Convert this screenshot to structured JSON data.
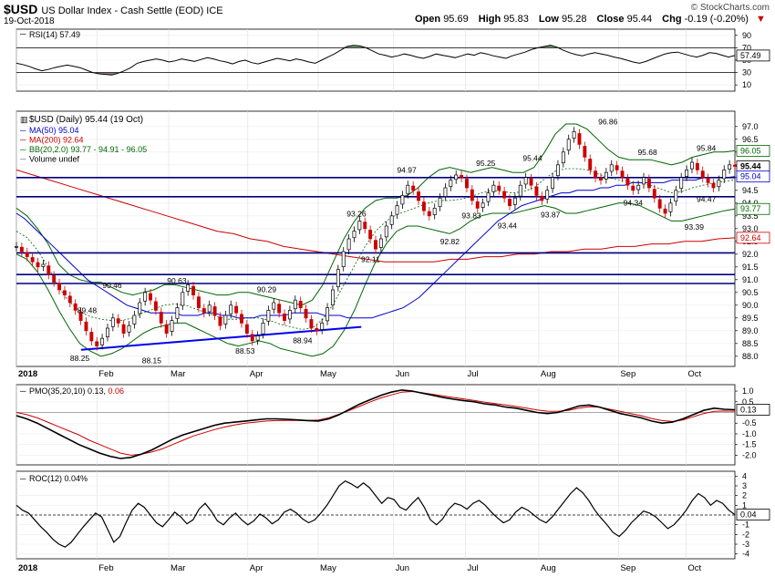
{
  "header": {
    "symbol": "$USD",
    "description": "US Dollar Index - Cash Settle (EOD) ICE",
    "date": "19-Oct-2018",
    "credit": "© StockCharts.com",
    "open_label": "Open",
    "open": "95.69",
    "high_label": "High",
    "high": "95.83",
    "low_label": "Low",
    "low": "95.28",
    "close_label": "Close",
    "close": "95.44",
    "chg_label": "Chg",
    "chg": "-0.19 (-0.20%)",
    "down_arrow": "▼"
  },
  "colors": {
    "up": "#000000",
    "down": "#cc0000",
    "ma50": "#0000cc",
    "ma200": "#cc0000",
    "bb": "#006600",
    "hline": "#000080",
    "trend": "#0000ee",
    "pmo": "#000000",
    "pmo_sig": "#cc0000",
    "rsi": "#000000",
    "rsi_fill": "#669966",
    "rsi_low": "#996666"
  },
  "chart_data": [
    {
      "type": "line",
      "panel": "rsi",
      "title": "RSI(14) 57.49",
      "last_label": "57.49",
      "ylim": [
        0,
        100
      ],
      "yticks": [
        10,
        30,
        50,
        70,
        90
      ],
      "levels": [
        30,
        70
      ],
      "values": [
        45,
        43,
        40,
        36,
        33,
        35,
        38,
        40,
        42,
        40,
        38,
        34,
        30,
        28,
        27,
        26,
        29,
        33,
        38,
        45,
        48,
        50,
        52,
        50,
        47,
        49,
        52,
        50,
        48,
        51,
        54,
        52,
        49,
        47,
        44,
        48,
        50,
        46,
        44,
        47,
        50,
        53,
        51,
        49,
        52,
        50,
        47,
        45,
        50,
        55,
        60,
        66,
        72,
        74,
        73,
        70,
        65,
        60,
        58,
        55,
        57,
        60,
        58,
        55,
        53,
        56,
        60,
        58,
        56,
        54,
        57,
        60,
        58,
        62,
        60,
        57,
        55,
        53,
        57,
        60,
        63,
        67,
        70,
        72,
        74,
        71,
        66,
        62,
        59,
        57,
        60,
        62,
        60,
        58,
        55,
        53,
        50,
        47,
        45,
        48,
        52,
        56,
        60,
        62,
        63,
        60,
        57,
        55,
        58,
        62,
        61,
        58,
        55,
        57.49
      ]
    },
    {
      "type": "candlestick",
      "panel": "price",
      "title": "$USD (Daily) 95.44 (19 Oct)",
      "legend": [
        {
          "label": "MA(50) 95.04",
          "color": "#0000cc"
        },
        {
          "label": "MA(200) 92.64",
          "color": "#cc0000"
        },
        {
          "label": "BB(20,2.0) 93.77 - 94.91 - 96.05",
          "color": "#006600"
        },
        {
          "label": "Volume undef",
          "color": "#666666"
        }
      ],
      "ylim": [
        87.6,
        97.6
      ],
      "yticks": [
        "97.0",
        "96.5",
        "96.0",
        "95.5",
        "95.0",
        "94.5",
        "94.0",
        "93.5",
        "93.0",
        "92.5",
        "92.0",
        "91.5",
        "91.0",
        "90.5",
        "90.0",
        "89.5",
        "89.0",
        "88.5",
        "88.0"
      ],
      "last_labels": [
        {
          "value": 96.05,
          "text": "96.05",
          "color": "#006600"
        },
        {
          "value": 95.44,
          "text": "95.44",
          "color": "#000000",
          "bold": true
        },
        {
          "value": 95.04,
          "text": "95.04",
          "color": "#0000cc"
        },
        {
          "value": 93.77,
          "text": "93.77",
          "color": "#006600"
        },
        {
          "value": 92.64,
          "text": "92.64",
          "color": "#cc0000"
        }
      ],
      "closes": [
        92.3,
        92.1,
        91.9,
        91.7,
        91.5,
        91.6,
        91.2,
        90.9,
        90.6,
        90.4,
        90.1,
        89.8,
        89.4,
        89.0,
        88.6,
        88.4,
        88.7,
        89.1,
        89.5,
        89.3,
        88.9,
        89.2,
        89.6,
        90.1,
        90.5,
        90.2,
        89.8,
        89.3,
        88.9,
        89.4,
        89.9,
        90.5,
        90.8,
        90.4,
        89.9,
        89.7,
        90.0,
        89.6,
        89.2,
        89.6,
        90.0,
        89.7,
        89.3,
        88.9,
        88.6,
        88.8,
        89.3,
        89.8,
        90.1,
        89.7,
        89.4,
        89.8,
        90.2,
        89.9,
        89.5,
        89.1,
        89.0,
        89.3,
        89.9,
        90.6,
        91.4,
        92.1,
        92.6,
        92.9,
        93.3,
        93.0,
        92.6,
        92.2,
        92.6,
        93.1,
        93.5,
        93.9,
        94.3,
        94.7,
        94.5,
        94.1,
        93.7,
        93.5,
        93.8,
        94.2,
        94.6,
        94.9,
        95.1,
        95.0,
        94.6,
        94.1,
        93.8,
        94.0,
        94.4,
        94.7,
        94.5,
        94.2,
        93.9,
        94.2,
        94.7,
        95.0,
        94.7,
        94.3,
        94.1,
        94.5,
        95.0,
        95.5,
        96.0,
        96.5,
        96.8,
        96.3,
        95.8,
        95.3,
        95.0,
        94.9,
        95.2,
        95.5,
        95.3,
        95.0,
        94.7,
        94.5,
        94.7,
        95.0,
        94.6,
        94.2,
        93.8,
        93.6,
        94.0,
        94.5,
        95.0,
        95.3,
        95.6,
        95.3,
        95.0,
        94.8,
        94.6,
        94.9,
        95.3,
        95.5,
        95.44
      ],
      "ma50": [
        93.6,
        93.4,
        93.1,
        92.8,
        92.5,
        92.2,
        91.9,
        91.6,
        91.3,
        91.0,
        90.8,
        90.6,
        90.4,
        90.2,
        90.0,
        89.9,
        89.8,
        89.7,
        89.7,
        89.7,
        89.7,
        89.6,
        89.6,
        89.6,
        89.7,
        89.7,
        89.6,
        89.6,
        89.5,
        89.5,
        89.5,
        89.6,
        89.6,
        89.6,
        89.6,
        89.7,
        89.7,
        89.7,
        89.7,
        89.6,
        89.6,
        89.6,
        89.5,
        89.5,
        89.5,
        89.5,
        89.6,
        89.7,
        89.8,
        89.9,
        90.1,
        90.3,
        90.6,
        90.9,
        91.2,
        91.5,
        91.8,
        92.1,
        92.4,
        92.7,
        93.0,
        93.3,
        93.5,
        93.7,
        93.9,
        94.0,
        94.1,
        94.2,
        94.3,
        94.4,
        94.4,
        94.5,
        94.5,
        94.5,
        94.6,
        94.6,
        94.7,
        94.7,
        94.8,
        94.8,
        94.8,
        94.8,
        94.8,
        94.9,
        94.9,
        94.9,
        94.9,
        95.0,
        95.0,
        95.0,
        95.0,
        95.04
      ],
      "ma200": [
        95.3,
        95.1,
        94.9,
        94.7,
        94.5,
        94.3,
        94.1,
        93.9,
        93.7,
        93.5,
        93.3,
        93.1,
        92.9,
        92.8,
        92.6,
        92.5,
        92.3,
        92.2,
        92.1,
        92.0,
        91.9,
        91.8,
        91.7,
        91.7,
        91.7,
        91.7,
        91.8,
        91.8,
        91.9,
        91.9,
        92.0,
        92.0,
        92.1,
        92.1,
        92.2,
        92.2,
        92.3,
        92.3,
        92.4,
        92.4,
        92.5,
        92.5,
        92.6,
        92.64
      ],
      "bb_upper": [
        93.8,
        93.5,
        93.0,
        92.4,
        91.6,
        91.2,
        91.0,
        90.9,
        90.9,
        90.7,
        90.5,
        90.4,
        90.5,
        90.6,
        90.8,
        90.8,
        90.7,
        90.6,
        90.5,
        90.4,
        90.4,
        90.5,
        90.5,
        90.4,
        90.3,
        90.2,
        90.1,
        90.0,
        90.2,
        90.8,
        91.7,
        92.6,
        93.3,
        93.8,
        94.1,
        94.2,
        94.2,
        94.3,
        94.6,
        95.0,
        95.3,
        95.4,
        95.3,
        95.2,
        95.3,
        95.4,
        95.3,
        95.2,
        95.2,
        95.4,
        96.0,
        96.7,
        97.1,
        97.1,
        96.9,
        96.5,
        96.1,
        95.8,
        95.7,
        95.7,
        95.7,
        95.6,
        95.5,
        95.6,
        95.8,
        95.9,
        96.0,
        96.0,
        96.05
      ],
      "bb_lower": [
        92.0,
        91.8,
        91.3,
        90.6,
        89.8,
        89.1,
        88.5,
        88.2,
        88.0,
        88.1,
        88.3,
        88.6,
        88.9,
        89.1,
        89.2,
        89.3,
        89.3,
        89.1,
        88.9,
        88.7,
        88.5,
        88.4,
        88.5,
        88.6,
        88.5,
        88.3,
        88.2,
        88.1,
        88.0,
        88.1,
        88.4,
        89.0,
        89.8,
        90.8,
        91.7,
        92.4,
        92.9,
        93.1,
        93.1,
        93.0,
        92.9,
        92.8,
        93.0,
        93.3,
        93.5,
        93.6,
        93.6,
        93.6,
        93.7,
        93.8,
        93.9,
        93.8,
        93.6,
        93.6,
        93.7,
        93.8,
        93.9,
        94.0,
        94.0,
        93.9,
        93.7,
        93.5,
        93.3,
        93.3,
        93.4,
        93.5,
        93.6,
        93.7,
        93.77
      ],
      "hlines": [
        95.0,
        94.25,
        92.05,
        91.2,
        90.85
      ],
      "trendline": {
        "from": [
          0.09,
          88.25
        ],
        "to": [
          0.48,
          89.15
        ]
      },
      "annotations": [
        {
          "text": "88.25",
          "t": 0.09,
          "v": 88.25,
          "pos": "below"
        },
        {
          "text": "89.48",
          "t": 0.1,
          "v": 89.48,
          "pos": "above"
        },
        {
          "text": "90.46",
          "t": 0.135,
          "v": 90.46,
          "pos": "above"
        },
        {
          "text": "88.15",
          "t": 0.19,
          "v": 88.15,
          "pos": "below"
        },
        {
          "text": "90.63",
          "t": 0.225,
          "v": 90.63,
          "pos": "above"
        },
        {
          "text": "90.29",
          "t": 0.35,
          "v": 90.29,
          "pos": "above"
        },
        {
          "text": "88.53",
          "t": 0.32,
          "v": 88.53,
          "pos": "below"
        },
        {
          "text": "88.94",
          "t": 0.4,
          "v": 88.94,
          "pos": "below"
        },
        {
          "text": "93.26",
          "t": 0.475,
          "v": 93.26,
          "pos": "above"
        },
        {
          "text": "92.11",
          "t": 0.495,
          "v": 92.11,
          "pos": "below"
        },
        {
          "text": "94.97",
          "t": 0.545,
          "v": 94.97,
          "pos": "above"
        },
        {
          "text": "92.82",
          "t": 0.605,
          "v": 92.82,
          "pos": "below"
        },
        {
          "text": "93.83",
          "t": 0.635,
          "v": 93.83,
          "pos": "below"
        },
        {
          "text": "95.25",
          "t": 0.655,
          "v": 95.25,
          "pos": "above"
        },
        {
          "text": "93.44",
          "t": 0.685,
          "v": 93.44,
          "pos": "below"
        },
        {
          "text": "95.44",
          "t": 0.72,
          "v": 95.44,
          "pos": "above"
        },
        {
          "text": "93.87",
          "t": 0.745,
          "v": 93.87,
          "pos": "below"
        },
        {
          "text": "96.86",
          "t": 0.825,
          "v": 96.86,
          "pos": "above"
        },
        {
          "text": "95.68",
          "t": 0.88,
          "v": 95.68,
          "pos": "above"
        },
        {
          "text": "94.34",
          "t": 0.86,
          "v": 94.34,
          "pos": "below"
        },
        {
          "text": "93.39",
          "t": 0.945,
          "v": 93.39,
          "pos": "below"
        },
        {
          "text": "95.84",
          "t": 0.99,
          "v": 95.84,
          "pos": "above"
        },
        {
          "text": "94.47",
          "t": 1.02,
          "v": 94.47,
          "pos": "below"
        }
      ]
    },
    {
      "type": "line",
      "panel": "pmo",
      "title": "PMO(35,20,10) 0.13,",
      "signal_label": "0.06",
      "last_label": "0.13",
      "ylim": [
        -2.45,
        1.3
      ],
      "yticks": [
        "1.0",
        "0.5",
        "-0.5",
        "-1.0",
        "-1.5",
        "-2.0"
      ],
      "zero": 0,
      "pmo": [
        -0.15,
        -0.3,
        -0.5,
        -0.75,
        -1.0,
        -1.25,
        -1.5,
        -1.7,
        -1.9,
        -2.05,
        -2.15,
        -2.1,
        -1.95,
        -1.75,
        -1.5,
        -1.25,
        -1.05,
        -0.9,
        -0.75,
        -0.6,
        -0.5,
        -0.45,
        -0.4,
        -0.35,
        -0.3,
        -0.3,
        -0.32,
        -0.35,
        -0.38,
        -0.4,
        -0.3,
        -0.1,
        0.15,
        0.4,
        0.6,
        0.8,
        0.95,
        1.05,
        1.0,
        0.9,
        0.8,
        0.7,
        0.62,
        0.55,
        0.5,
        0.4,
        0.35,
        0.25,
        0.2,
        0.1,
        0.0,
        -0.05,
        0.0,
        0.15,
        0.3,
        0.35,
        0.25,
        0.1,
        -0.05,
        -0.15,
        -0.25,
        -0.4,
        -0.5,
        -0.45,
        -0.3,
        -0.1,
        0.1,
        0.2,
        0.15,
        0.13
      ],
      "signal": [
        0.0,
        -0.1,
        -0.25,
        -0.45,
        -0.65,
        -0.85,
        -1.05,
        -1.3,
        -1.5,
        -1.7,
        -1.9,
        -2.0,
        -1.95,
        -1.85,
        -1.7,
        -1.5,
        -1.3,
        -1.1,
        -0.95,
        -0.8,
        -0.68,
        -0.58,
        -0.5,
        -0.45,
        -0.4,
        -0.38,
        -0.37,
        -0.37,
        -0.37,
        -0.35,
        -0.25,
        -0.08,
        0.1,
        0.3,
        0.5,
        0.68,
        0.82,
        0.95,
        0.98,
        0.92,
        0.85,
        0.77,
        0.7,
        0.63,
        0.56,
        0.48,
        0.42,
        0.35,
        0.28,
        0.2,
        0.12,
        0.06,
        0.05,
        0.1,
        0.2,
        0.27,
        0.25,
        0.15,
        0.05,
        -0.05,
        -0.15,
        -0.28,
        -0.38,
        -0.42,
        -0.35,
        -0.2,
        -0.05,
        0.05,
        0.07,
        0.06
      ]
    },
    {
      "type": "line",
      "panel": "roc",
      "title": "ROC(12) 0.04%",
      "last_label": "0.04",
      "ylim": [
        -4.5,
        4.5
      ],
      "yticks": [
        "4",
        "3",
        "2",
        "1",
        "-1",
        "-2",
        "-3",
        "-4"
      ],
      "zero": 0,
      "values": [
        1.0,
        0.5,
        0.2,
        -0.5,
        -1.2,
        -1.8,
        -2.5,
        -3.0,
        -3.3,
        -2.8,
        -2.0,
        -1.2,
        -0.5,
        0.2,
        -0.2,
        -1.5,
        -2.8,
        -2.2,
        -0.8,
        0.5,
        1.2,
        0.8,
        0.0,
        -0.8,
        -1.2,
        -0.5,
        0.3,
        -0.2,
        -0.9,
        -0.5,
        0.6,
        1.2,
        0.4,
        -0.6,
        -1.0,
        -0.3,
        0.2,
        -0.5,
        -1.0,
        -0.6,
        0.1,
        -0.3,
        -0.9,
        -0.5,
        0.3,
        0.6,
        0.2,
        -0.4,
        -0.8,
        -0.5,
        0.2,
        1.0,
        2.0,
        3.0,
        3.5,
        3.2,
        2.8,
        3.3,
        2.8,
        2.0,
        1.2,
        1.8,
        1.6,
        0.8,
        0.5,
        1.2,
        1.8,
        0.8,
        -0.5,
        -1.0,
        -0.4,
        0.6,
        1.2,
        1.0,
        0.6,
        1.2,
        1.5,
        1.0,
        0.3,
        -0.3,
        -0.8,
        -0.5,
        0.3,
        0.8,
        0.5,
        0.0,
        -0.5,
        -0.8,
        -0.2,
        0.6,
        1.4,
        2.2,
        2.8,
        2.3,
        1.5,
        0.5,
        -0.3,
        -1.0,
        -1.8,
        -2.2,
        -1.6,
        -0.8,
        -0.2,
        0.4,
        0.2,
        -0.2,
        -0.8,
        -1.4,
        -1.0,
        -0.3,
        0.5,
        1.5,
        2.2,
        1.8,
        1.0,
        1.5,
        1.2,
        0.5,
        0.04
      ]
    }
  ],
  "x_axis": {
    "months": [
      {
        "label": "2018",
        "t": 0.0,
        "bold": true
      },
      {
        "label": "Feb",
        "t": 0.112
      },
      {
        "label": "Mar",
        "t": 0.212
      },
      {
        "label": "Apr",
        "t": 0.322
      },
      {
        "label": "May",
        "t": 0.42
      },
      {
        "label": "Jun",
        "t": 0.525
      },
      {
        "label": "Jul",
        "t": 0.625
      },
      {
        "label": "Aug",
        "t": 0.727
      },
      {
        "label": "Sep",
        "t": 0.838
      },
      {
        "label": "Oct",
        "t": 0.932
      }
    ]
  }
}
